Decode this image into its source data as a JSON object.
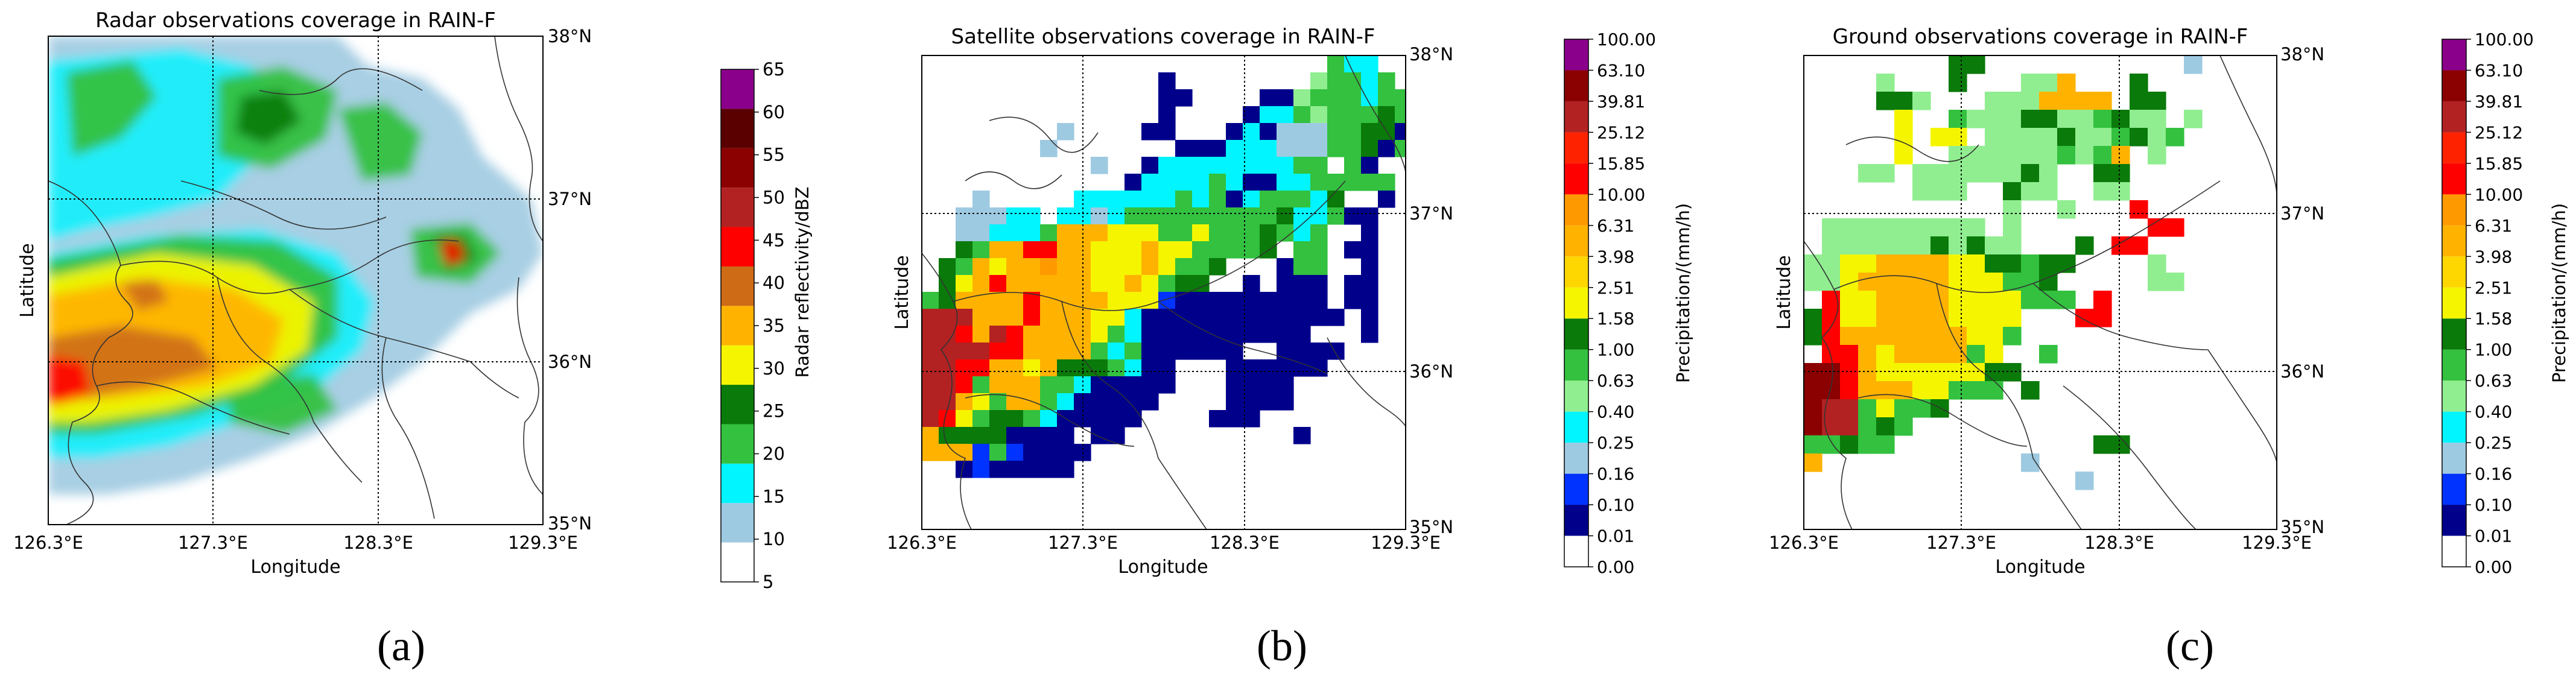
{
  "panels": [
    {
      "id": "a",
      "title": "Radar observations coverage in RAIN-F",
      "xlabel": "Longitude",
      "ylabel": "Latitude",
      "x_ticks": [
        "126.3°E",
        "127.3°E",
        "128.3°E",
        "129.3°E"
      ],
      "y_ticks": [
        "35°N",
        "36°N",
        "37°N",
        "38°N"
      ],
      "colorbar": {
        "label": "Radar reflectivity/dBZ",
        "ticks": [
          "5",
          "10",
          "15",
          "20",
          "25",
          "30",
          "35",
          "40",
          "45",
          "50",
          "55",
          "60",
          "65"
        ],
        "colors": [
          "#ffffff",
          "#9ecae1",
          "#00f5ff",
          "#33c13f",
          "#0a7a0a",
          "#f5f500",
          "#ffb300",
          "#cd6b17",
          "#ff0000",
          "#b22222",
          "#8b0000",
          "#5a0000",
          "#8b008b"
        ]
      },
      "caption": "(a)"
    },
    {
      "id": "b",
      "title": "Satellite observations coverage in RAIN-F",
      "xlabel": "Longitude",
      "ylabel": "Latitude",
      "x_ticks": [
        "126.3°E",
        "127.3°E",
        "128.3°E",
        "129.3°E"
      ],
      "y_ticks": [
        "35°N",
        "36°N",
        "37°N",
        "38°N"
      ],
      "colorbar": {
        "label": "Precipitation/(mm/h)",
        "ticks": [
          "0.00",
          "0.01",
          "0.10",
          "0.16",
          "0.25",
          "0.40",
          "0.63",
          "1.00",
          "1.58",
          "2.51",
          "3.98",
          "6.31",
          "10.00",
          "15.85",
          "25.12",
          "39.81",
          "63.10",
          "100.00"
        ],
        "colors": [
          "#ffffff",
          "#00008b",
          "#0033ff",
          "#9ecae1",
          "#00f5ff",
          "#90ee90",
          "#33c13f",
          "#0a7a0a",
          "#f5f500",
          "#ffd700",
          "#ffb300",
          "#ff9900",
          "#ff0000",
          "#ff2200",
          "#b22222",
          "#8b0000",
          "#8b008b"
        ]
      },
      "caption": "(b)"
    },
    {
      "id": "c",
      "title": "Ground observations coverage in RAIN-F",
      "xlabel": "Longitude",
      "ylabel": "Latitude",
      "x_ticks": [
        "126.3°E",
        "127.3°E",
        "128.3°E",
        "129.3°E"
      ],
      "y_ticks": [
        "35°N",
        "36°N",
        "37°N",
        "38°N"
      ],
      "colorbar": {
        "label": "Precipitation/(mm/h)",
        "ticks": [
          "0.00",
          "0.01",
          "0.10",
          "0.16",
          "0.25",
          "0.40",
          "0.63",
          "1.00",
          "1.58",
          "2.51",
          "3.98",
          "6.31",
          "10.00",
          "15.85",
          "25.12",
          "39.81",
          "63.10",
          "100.00"
        ],
        "colors": [
          "#ffffff",
          "#00008b",
          "#0033ff",
          "#9ecae1",
          "#00f5ff",
          "#90ee90",
          "#33c13f",
          "#0a7a0a",
          "#f5f500",
          "#ffd700",
          "#ffb300",
          "#ff9900",
          "#ff0000",
          "#ff2200",
          "#b22222",
          "#8b0000",
          "#8b008b"
        ]
      },
      "caption": "(c)"
    }
  ]
}
